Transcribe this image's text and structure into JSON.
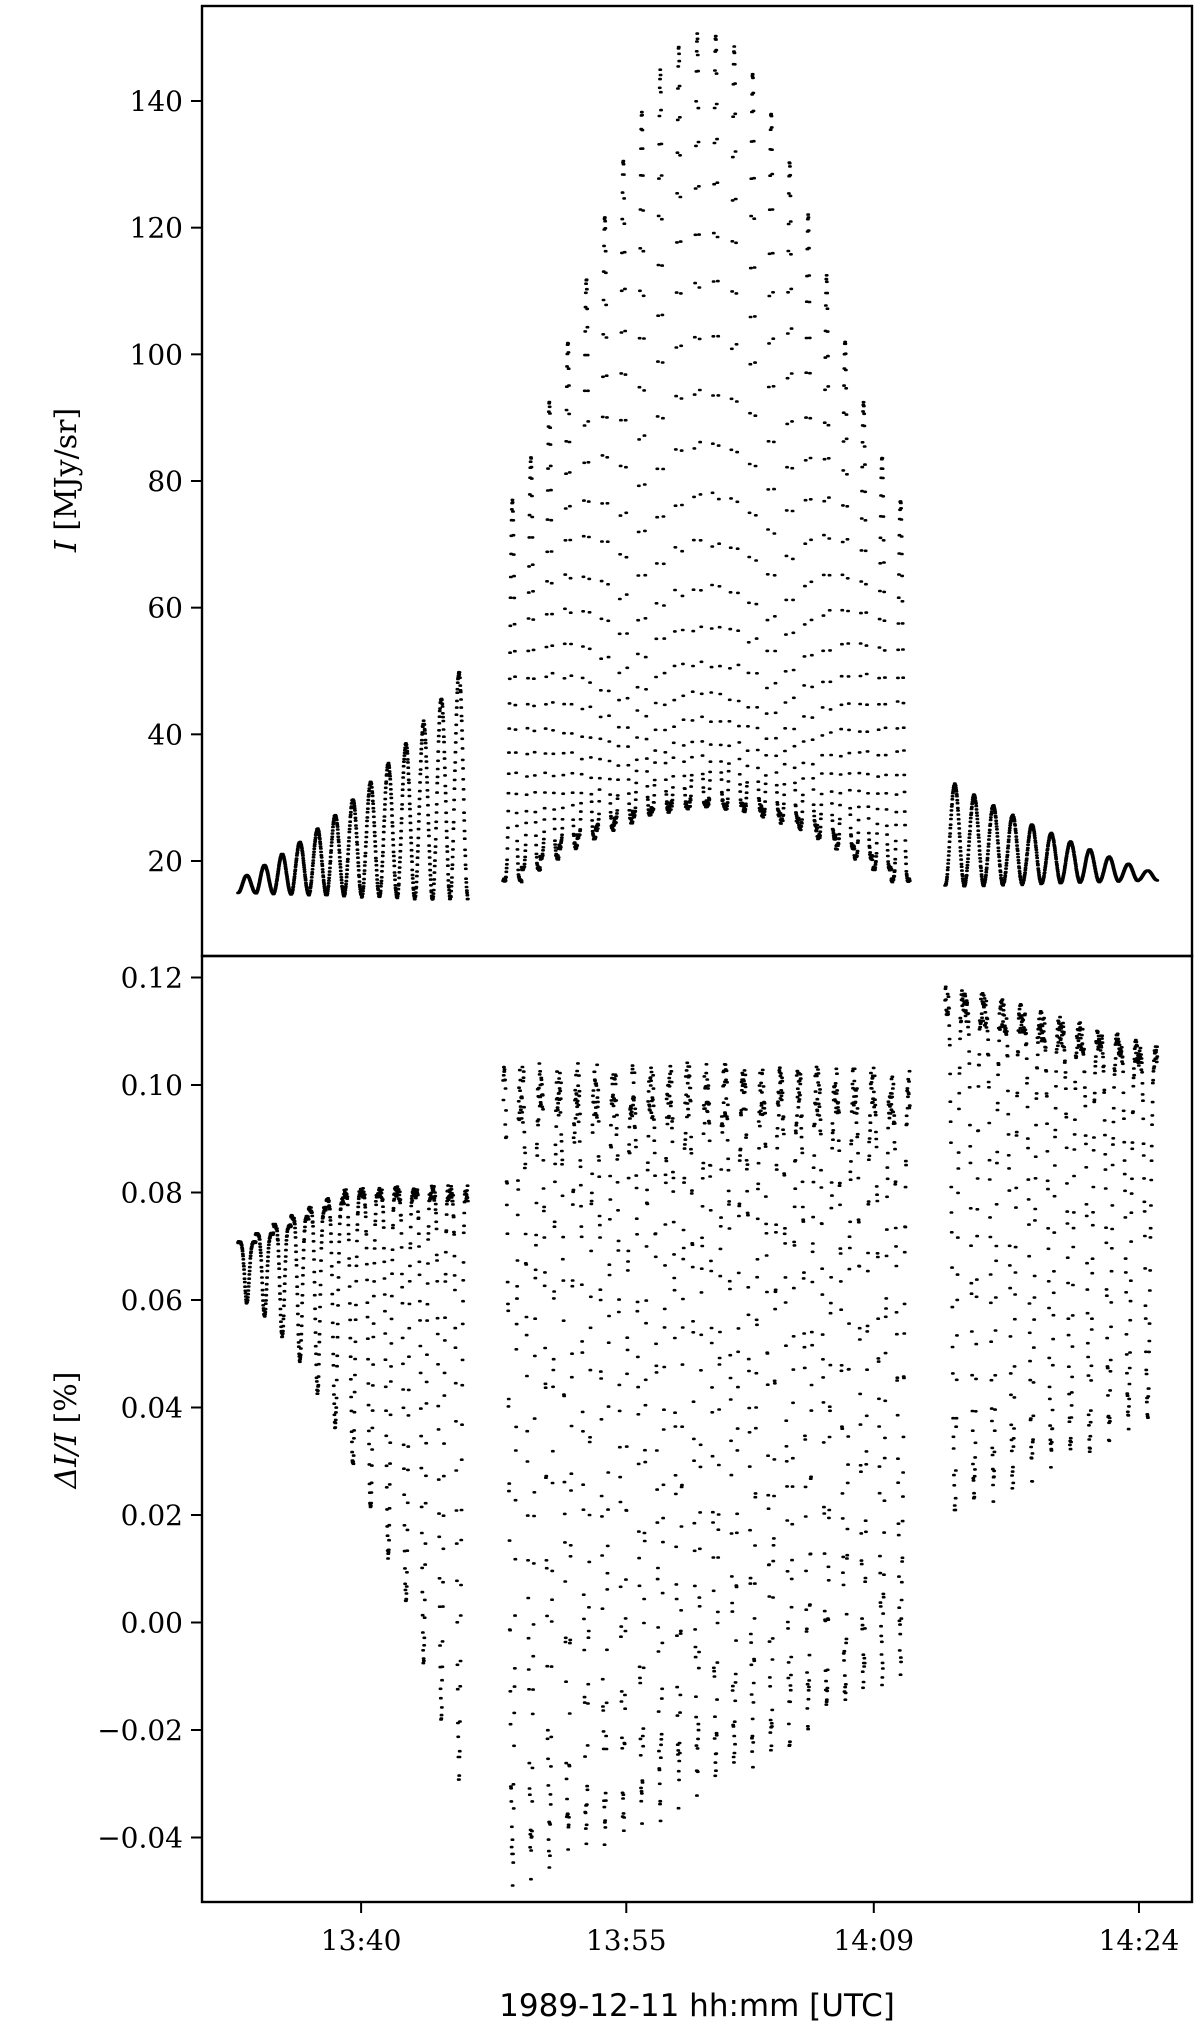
{
  "chart_data": [
    {
      "type": "scatter",
      "panel": "top",
      "ylabel_var": "I",
      "ylabel_unit": " [MJy/sr]",
      "ylim": [
        5,
        155
      ],
      "yticks": [
        20,
        40,
        60,
        80,
        100,
        120,
        140
      ],
      "ytick_labels": [
        "20",
        "40",
        "60",
        "80",
        "100",
        "120",
        "140"
      ],
      "grid": false,
      "segments": [
        {
          "t_start": "13:33",
          "t_end": "13:46",
          "oscillations": 13,
          "trough": [
            15,
            14
          ],
          "peak_start": 17,
          "peak_end": 52
        },
        {
          "t_start": "13:48",
          "t_end": "14:11",
          "oscillations": 22,
          "trough_edge": 16,
          "trough_center": 29,
          "peak_max": 151
        },
        {
          "t_start": "14:13",
          "t_end": "14:25",
          "oscillations": 11,
          "trough": [
            16,
            17
          ],
          "peak_start": 33,
          "peak_end": 18
        }
      ]
    },
    {
      "type": "scatter",
      "panel": "bottom",
      "ylabel_var": "ΔI/I",
      "ylabel_unit": " [%]",
      "ylim": [
        -0.052,
        0.124
      ],
      "yticks": [
        -0.04,
        -0.02,
        0.0,
        0.02,
        0.04,
        0.06,
        0.08,
        0.1,
        0.12
      ],
      "ytick_labels": [
        "−0.04",
        "−0.02",
        "0.00",
        "0.02",
        "0.04",
        "0.06",
        "0.08",
        "0.10",
        "0.12"
      ],
      "grid": false,
      "xlabel": "1989-12-11 hh:mm [UTC]",
      "xticks": [
        "13:40",
        "13:55",
        "14:09",
        "14:24"
      ],
      "xlim": [
        "13:31",
        "14:27"
      ],
      "segments": [
        {
          "t_start": "13:33",
          "t_end": "13:46",
          "oscillations": 13,
          "top": [
            0.07,
            0.08
          ],
          "bottom": [
            0.06,
            -0.034
          ]
        },
        {
          "t_start": "13:48",
          "t_end": "14:11",
          "oscillations": 22,
          "band": [
            0.082,
            0.092
          ],
          "min": -0.045
        },
        {
          "t_start": "14:13",
          "t_end": "14:25",
          "oscillations": 11,
          "top": [
            0.116,
            0.105
          ],
          "bottom": [
            0.02,
            0.04
          ]
        }
      ]
    }
  ]
}
